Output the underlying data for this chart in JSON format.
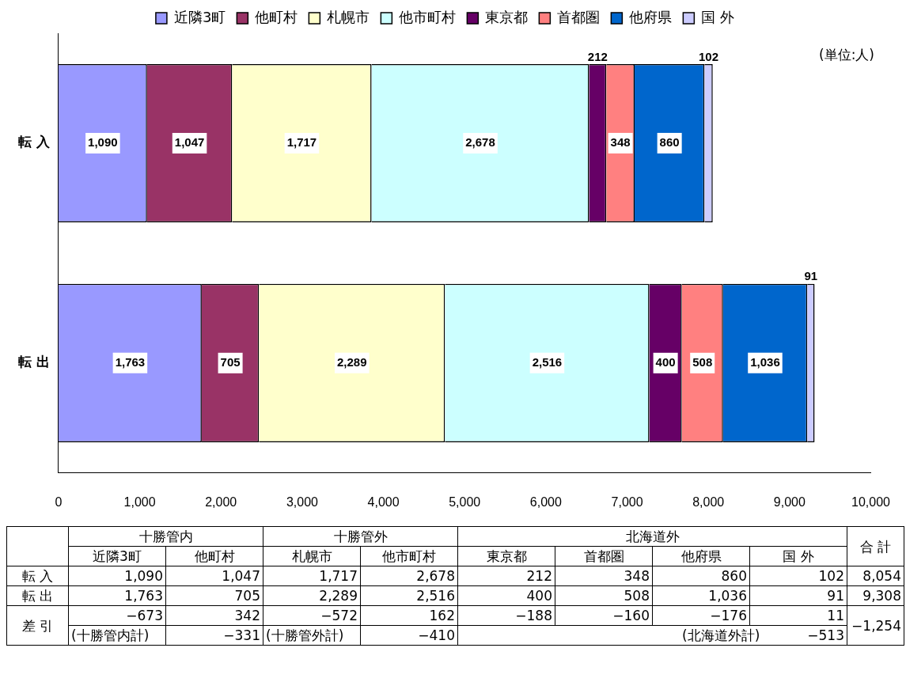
{
  "chart_data": {
    "type": "bar",
    "orientation": "horizontal",
    "stacked": true,
    "legend": "top",
    "grid": false,
    "categories": [
      "転 入",
      "転 出"
    ],
    "series": [
      {
        "name": "近隣3町",
        "color": "#9999ff",
        "values": [
          1090,
          1763
        ],
        "value_labels": [
          "1,090",
          "1,763"
        ]
      },
      {
        "name": "他町村",
        "color": "#993366",
        "values": [
          1047,
          705
        ],
        "value_labels": [
          "1,047",
          "705"
        ]
      },
      {
        "name": "札幌市",
        "color": "#ffffcc",
        "values": [
          1717,
          2289
        ],
        "value_labels": [
          "1,717",
          "2,289"
        ]
      },
      {
        "name": "他市町村",
        "color": "#ccffff",
        "values": [
          2678,
          2516
        ],
        "value_labels": [
          "2,678",
          "2,516"
        ]
      },
      {
        "name": "東京都",
        "color": "#660066",
        "values": [
          212,
          400
        ],
        "value_labels": [
          "212",
          "400"
        ]
      },
      {
        "name": "首都圏",
        "color": "#ff8080",
        "values": [
          348,
          508
        ],
        "value_labels": [
          "348",
          "508"
        ]
      },
      {
        "name": "他府県",
        "color": "#0066cc",
        "values": [
          860,
          1036
        ],
        "value_labels": [
          "860",
          "1,036"
        ]
      },
      {
        "name": "国 外",
        "color": "#ccccff",
        "values": [
          102,
          91
        ],
        "value_labels": [
          "102",
          "91"
        ]
      }
    ],
    "xlim": [
      0,
      10000
    ],
    "xticks": [
      0,
      {
        "value": 1000,
        "label": "1,000"
      },
      {
        "value": 2000,
        "label": "2,000"
      },
      {
        "value": 3000,
        "label": "3,000"
      },
      {
        "value": 4000,
        "label": "4,000"
      },
      {
        "value": 5000,
        "label": "5,000"
      },
      {
        "value": 6000,
        "label": "6,000"
      },
      {
        "value": 7000,
        "label": "7,000"
      },
      {
        "value": 8000,
        "label": "8,000"
      },
      {
        "value": 9000,
        "label": "9,000"
      },
      {
        "value": 10000,
        "label": "10,000"
      }
    ],
    "annotations": [
      "(単位:人)",
      "十勝管内",
      "十勝管外",
      "北海道外",
      "合 計",
      "差 引",
      "−673",
      "342",
      "−572",
      "162",
      "−188",
      "−160",
      "−176",
      "11",
      "−1,254",
      "(十勝管内計)",
      "−331",
      "(十勝管外計)",
      "−410",
      "(北海道外計)",
      "−513",
      "8,054",
      "9,308"
    ]
  }
}
